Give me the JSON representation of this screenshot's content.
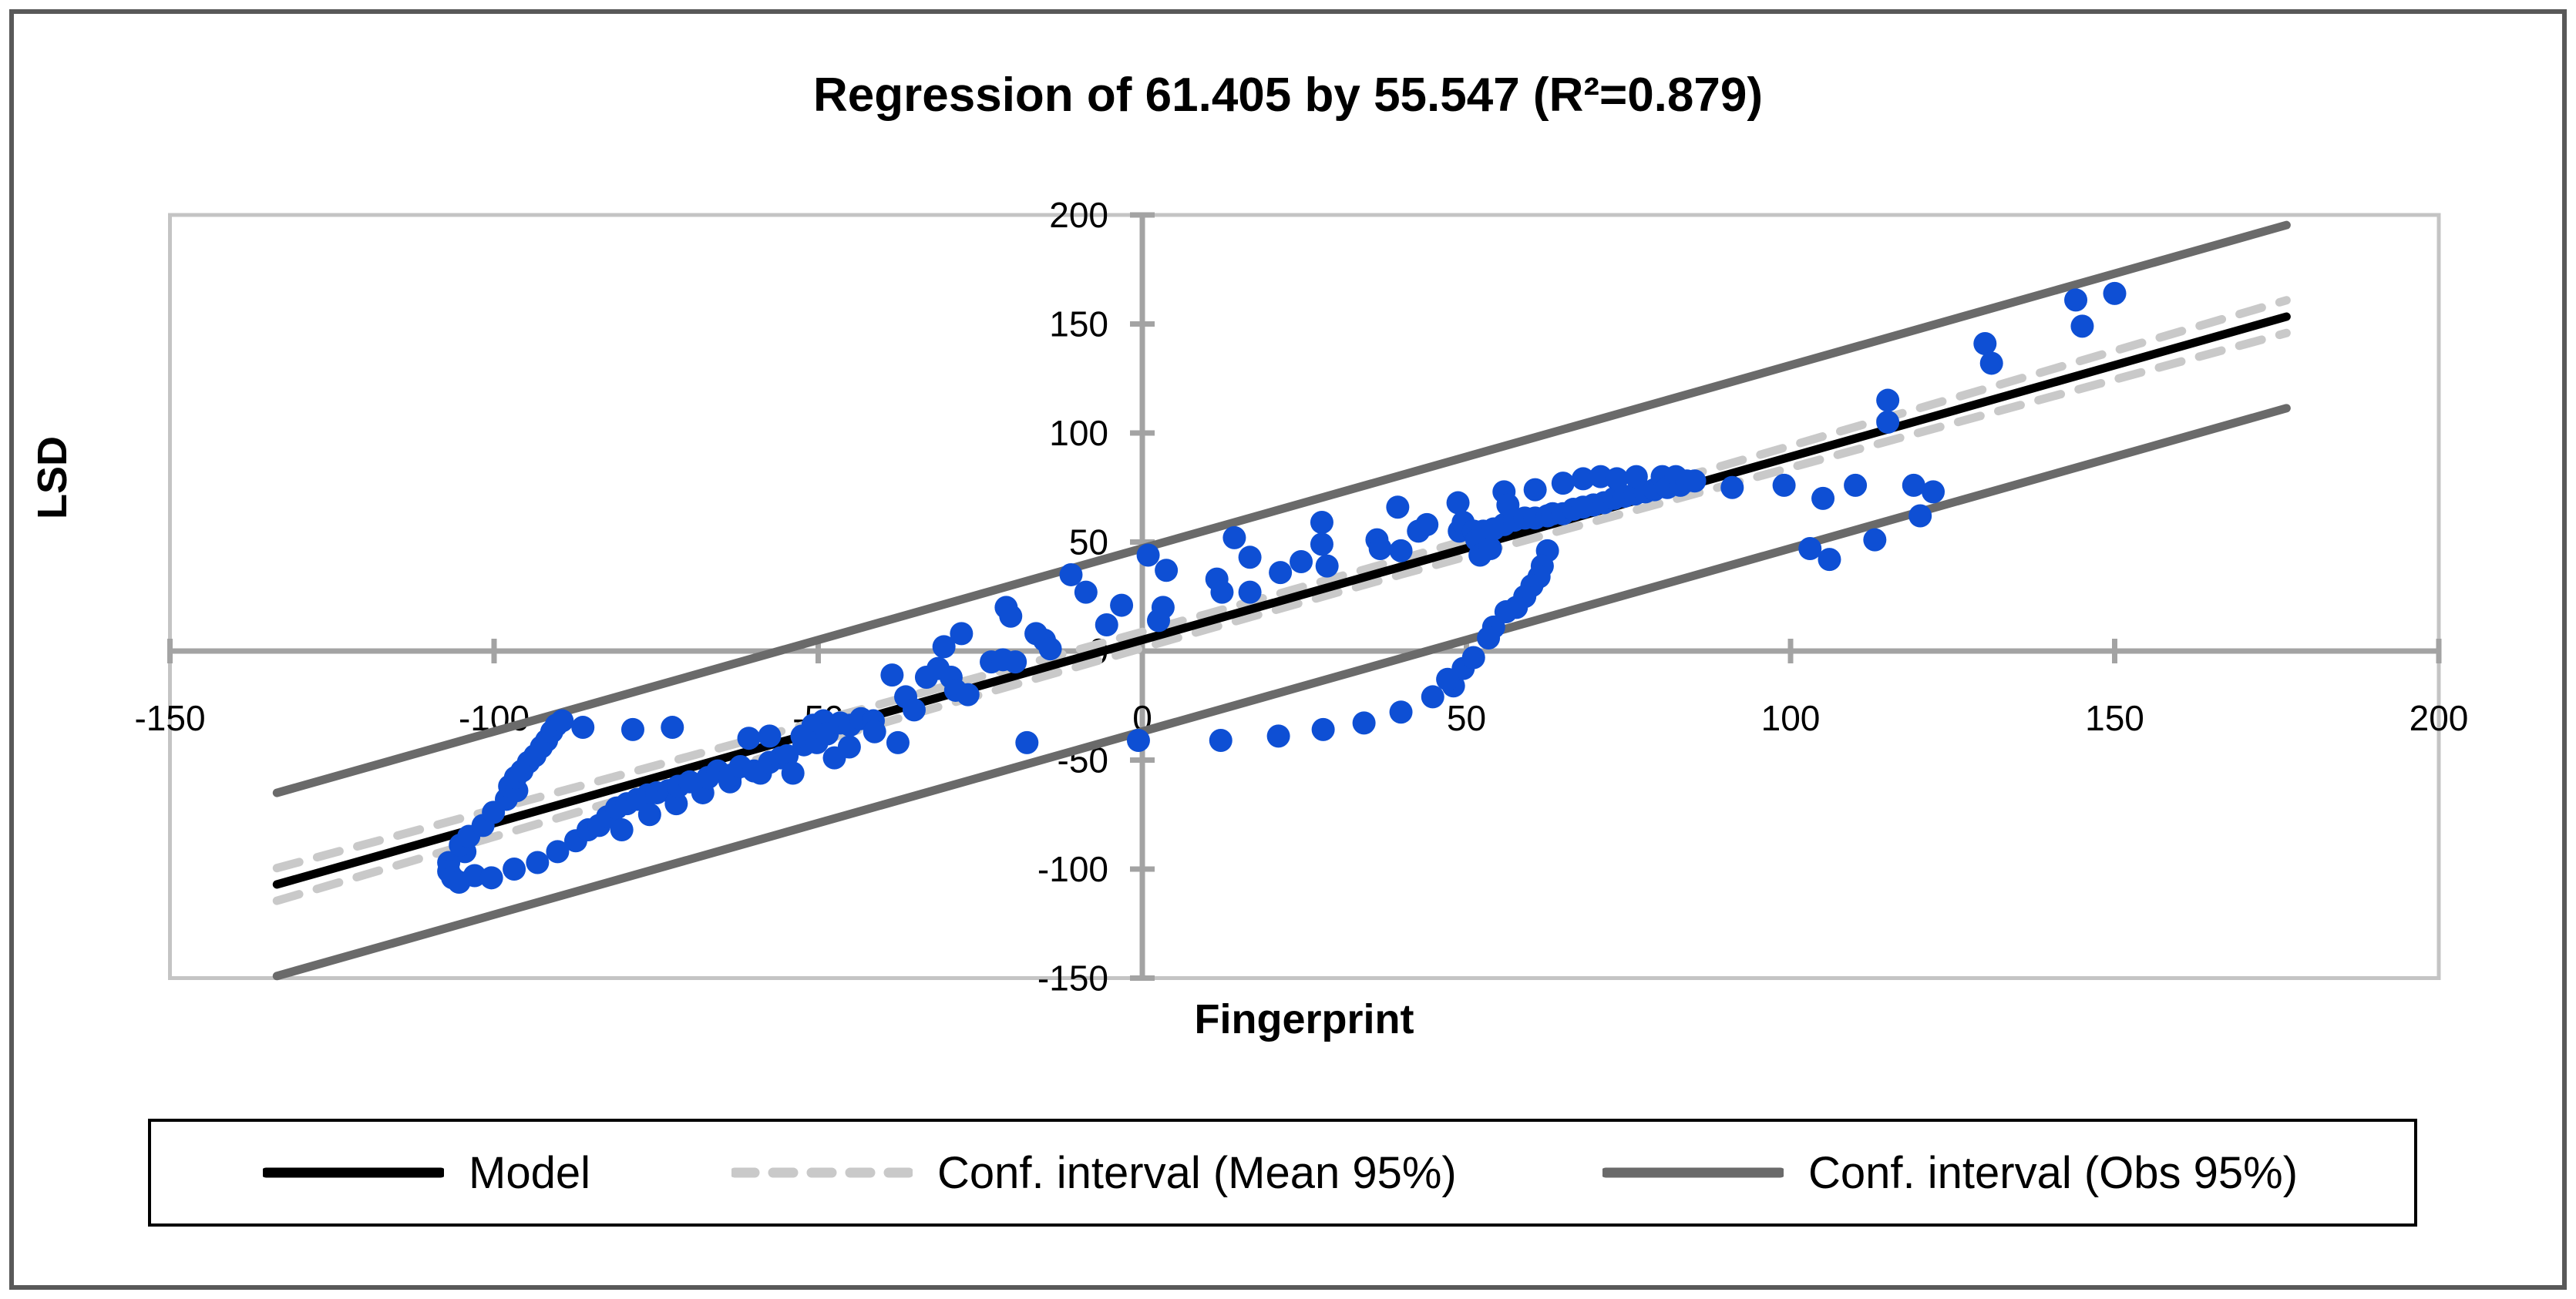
{
  "title": "Regression of 61.405 by 55.547 (R²=0.879)",
  "axes": {
    "x_label": "Fingerprint",
    "y_label": "LSD"
  },
  "legend": {
    "model_label": "Model",
    "ci_mean_label": "Conf. interval (Mean 95%)",
    "ci_obs_label": "Conf. interval (Obs 95%)"
  },
  "colors": {
    "point": "#0e4fd4",
    "model_line": "#000000",
    "ci_mean_line": "#c9c9c9",
    "ci_obs_line": "#6a6a6a",
    "axis": "#a3a3a3",
    "plot_border": "#c4c4c4",
    "outer_border": "#595959",
    "text": "#000000"
  },
  "chart_data": {
    "type": "scatter",
    "title": "Regression of 61.405 by 55.547 (R²=0.879)",
    "xlabel": "Fingerprint",
    "ylabel": "LSD",
    "x_range": [
      -150,
      200
    ],
    "y_range": [
      -150,
      200
    ],
    "x_ticks": [
      -150,
      -100,
      -50,
      0,
      50,
      100,
      150,
      200
    ],
    "y_ticks": [
      200,
      150,
      100,
      50,
      0,
      -50,
      -100,
      -150
    ],
    "grid": false,
    "legend_position": "bottom",
    "model_line": {
      "slope": 0.84,
      "intercept": 5.1,
      "x_start": -133.5,
      "x_end": 176.5
    },
    "ci_obs_offset": 42,
    "ci_mean": {
      "x": [
        -133.5,
        -110,
        -80,
        -50,
        -20,
        10,
        40,
        70,
        100,
        130,
        176.5
      ],
      "half": [
        7.5,
        6.6,
        5.6,
        4.7,
        4.0,
        3.5,
        3.5,
        4.2,
        5.0,
        5.9,
        7.5
      ]
    },
    "points": [
      [
        -107,
        -97
      ],
      [
        -107,
        -101
      ],
      [
        -106.4,
        -104
      ],
      [
        -105.4,
        -106
      ],
      [
        -103,
        -103
      ],
      [
        -104.5,
        -92
      ],
      [
        -105.2,
        -89
      ],
      [
        -103.9,
        -85
      ],
      [
        -101.7,
        -80
      ],
      [
        -100.1,
        -74
      ],
      [
        -98.1,
        -68
      ],
      [
        -97.6,
        -62
      ],
      [
        -96.5,
        -64
      ],
      [
        -96.7,
        -58
      ],
      [
        -95.7,
        -55
      ],
      [
        -94.7,
        -51
      ],
      [
        -93.7,
        -48
      ],
      [
        -92.7,
        -44
      ],
      [
        -91.9,
        -41
      ],
      [
        -91.1,
        -37
      ],
      [
        -90.4,
        -34
      ],
      [
        -89.5,
        -32
      ],
      [
        -100.4,
        -104
      ],
      [
        -96.9,
        -100
      ],
      [
        -93.3,
        -97
      ],
      [
        -90.2,
        -92
      ],
      [
        -87.4,
        -87
      ],
      [
        -85.5,
        -82
      ],
      [
        -83.8,
        -80
      ],
      [
        -82.5,
        -76
      ],
      [
        -81.1,
        -72
      ],
      [
        -80.3,
        -82
      ],
      [
        -79.5,
        -70
      ],
      [
        -77.9,
        -68
      ],
      [
        -76.3,
        -66
      ],
      [
        -76,
        -75
      ],
      [
        -74.9,
        -65
      ],
      [
        -73.1,
        -64
      ],
      [
        -71.9,
        -70
      ],
      [
        -71.6,
        -62
      ],
      [
        -69.8,
        -60
      ],
      [
        -67.8,
        -65
      ],
      [
        -67,
        -58
      ],
      [
        -65.5,
        -55
      ],
      [
        -63.6,
        -60
      ],
      [
        -63.5,
        -57
      ],
      [
        -62,
        -53
      ],
      [
        -59.9,
        -55
      ],
      [
        -58.9,
        -56
      ],
      [
        -57.5,
        -51
      ],
      [
        -55.8,
        -49
      ],
      [
        -54.8,
        -48
      ],
      [
        -53.9,
        -56
      ],
      [
        -52.2,
        -43
      ],
      [
        -52.5,
        -39
      ],
      [
        -60.7,
        -40
      ],
      [
        -57.5,
        -39
      ],
      [
        -50.8,
        -34
      ],
      [
        -50.2,
        -42
      ],
      [
        -49.2,
        -32
      ],
      [
        -48.6,
        -38
      ],
      [
        -47.5,
        -49
      ],
      [
        -46.6,
        -33
      ],
      [
        -45.2,
        -44
      ],
      [
        -45.1,
        -34
      ],
      [
        -43.4,
        -31
      ],
      [
        -41.5,
        -32
      ],
      [
        -41.3,
        -37
      ],
      [
        -86.3,
        -35
      ],
      [
        -78.6,
        -36
      ],
      [
        -72.5,
        -35
      ],
      [
        -38.6,
        -11
      ],
      [
        -37.7,
        -42
      ],
      [
        -36.5,
        -21
      ],
      [
        -35.2,
        -27
      ],
      [
        -33.3,
        -12
      ],
      [
        -31.5,
        -8
      ],
      [
        -30.6,
        2
      ],
      [
        -29.5,
        -12
      ],
      [
        -28.8,
        -18
      ],
      [
        -27.9,
        8
      ],
      [
        -26.9,
        -20
      ],
      [
        -23.3,
        -5
      ],
      [
        -21.5,
        -4
      ],
      [
        -21,
        20
      ],
      [
        -20.3,
        16
      ],
      [
        -19.6,
        -5
      ],
      [
        -17.8,
        -42
      ],
      [
        -16.4,
        8
      ],
      [
        -15.1,
        5
      ],
      [
        -14.2,
        1
      ],
      [
        -11,
        35
      ],
      [
        -8.7,
        27
      ],
      [
        -5.5,
        12
      ],
      [
        -3.2,
        21
      ],
      [
        -0.6,
        -41
      ],
      [
        0.9,
        44
      ],
      [
        2.5,
        14
      ],
      [
        3.2,
        20
      ],
      [
        3.7,
        37
      ],
      [
        12.1,
        -41
      ],
      [
        21,
        -39
      ],
      [
        27.9,
        -36
      ],
      [
        34.2,
        -33
      ],
      [
        39.9,
        -28
      ],
      [
        44.8,
        -21
      ],
      [
        48,
        -16
      ],
      [
        49.5,
        -8
      ],
      [
        51.1,
        -3
      ],
      [
        11.5,
        33
      ],
      [
        12.3,
        27
      ],
      [
        14.2,
        52
      ],
      [
        16.6,
        43
      ],
      [
        16.6,
        27
      ],
      [
        21.3,
        36
      ],
      [
        24.5,
        41
      ],
      [
        27.7,
        59
      ],
      [
        27.7,
        49
      ],
      [
        28.5,
        39
      ],
      [
        36.2,
        51
      ],
      [
        36.7,
        47
      ],
      [
        39.4,
        66
      ],
      [
        39.9,
        46
      ],
      [
        42.6,
        55
      ],
      [
        43.9,
        58
      ],
      [
        48.7,
        68
      ],
      [
        48.9,
        55
      ],
      [
        49.5,
        59
      ],
      [
        51.1,
        55
      ],
      [
        51.6,
        51
      ],
      [
        52.1,
        44
      ],
      [
        52.6,
        55
      ],
      [
        53.7,
        47
      ],
      [
        54.2,
        56
      ],
      [
        55.8,
        58
      ],
      [
        55.8,
        73
      ],
      [
        56.4,
        67
      ],
      [
        57.4,
        60
      ],
      [
        59,
        61
      ],
      [
        60.6,
        61
      ],
      [
        60.6,
        74
      ],
      [
        62.5,
        62
      ],
      [
        63.3,
        63
      ],
      [
        64.9,
        63
      ],
      [
        64.9,
        77
      ],
      [
        66.5,
        65
      ],
      [
        68,
        66
      ],
      [
        68,
        79
      ],
      [
        69.6,
        67
      ],
      [
        70.7,
        80
      ],
      [
        71.2,
        68
      ],
      [
        72.8,
        70
      ],
      [
        73.2,
        79
      ],
      [
        74.4,
        71
      ],
      [
        76,
        72
      ],
      [
        76.2,
        80
      ],
      [
        77.6,
        73
      ],
      [
        79,
        74
      ],
      [
        80.2,
        80
      ],
      [
        81,
        75
      ],
      [
        82.3,
        80
      ],
      [
        83,
        76
      ],
      [
        84,
        78
      ],
      [
        85.2,
        78
      ],
      [
        62.5,
        46
      ],
      [
        61.7,
        39
      ],
      [
        61.2,
        34
      ],
      [
        60.1,
        30
      ],
      [
        59,
        25
      ],
      [
        57.7,
        20
      ],
      [
        56.1,
        18
      ],
      [
        54.2,
        11
      ],
      [
        53.4,
        6
      ],
      [
        47.1,
        -13
      ],
      [
        91,
        75
      ],
      [
        99,
        76
      ],
      [
        103,
        47
      ],
      [
        105,
        70
      ],
      [
        106,
        42
      ],
      [
        110,
        76
      ],
      [
        113,
        51
      ],
      [
        115,
        115
      ],
      [
        115,
        105
      ],
      [
        119,
        76
      ],
      [
        120,
        62
      ],
      [
        122,
        73
      ],
      [
        130,
        141
      ],
      [
        131,
        132
      ],
      [
        144,
        161
      ],
      [
        145,
        149
      ],
      [
        150,
        164
      ]
    ]
  }
}
